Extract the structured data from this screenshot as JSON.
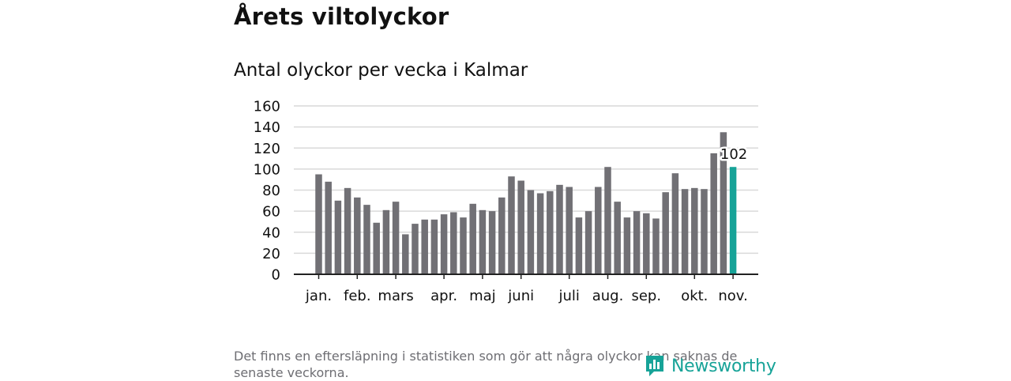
{
  "header": {
    "title": "Årets viltolyckor",
    "subtitle": "Antal olyckor per vecka i Kalmar"
  },
  "footer": {
    "note": "Det finns en eftersläpning i statistiken som gör att några olyckor kan saknas de senaste veckorna.",
    "logo_text": "Newsworthy",
    "logo_icon": "bar-chart-icon"
  },
  "colors": {
    "bar": "#717075",
    "highlight": "#17a398",
    "grid": "#d9d9d9",
    "axis": "#222222"
  },
  "chart_data": {
    "type": "bar",
    "title": "Antal olyckor per vecka i Kalmar",
    "xlabel": "",
    "ylabel": "",
    "ylim": [
      0,
      160
    ],
    "yticks": [
      0,
      20,
      40,
      60,
      80,
      100,
      120,
      140,
      160
    ],
    "grid": true,
    "weeks": [
      1,
      2,
      3,
      4,
      5,
      6,
      7,
      8,
      9,
      10,
      11,
      12,
      13,
      14,
      15,
      16,
      17,
      18,
      19,
      20,
      21,
      22,
      23,
      24,
      25,
      26,
      27,
      28,
      29,
      30,
      31,
      32,
      33,
      34,
      35,
      36,
      37,
      38,
      39,
      40,
      41,
      42,
      43,
      44
    ],
    "values": [
      95,
      88,
      70,
      82,
      73,
      66,
      49,
      61,
      69,
      38,
      48,
      52,
      52,
      57,
      59,
      54,
      67,
      61,
      60,
      73,
      93,
      89,
      80,
      77,
      79,
      85,
      83,
      54,
      60,
      83,
      102,
      69,
      54,
      60,
      58,
      53,
      78,
      96,
      81,
      82,
      81,
      115,
      135,
      102
    ],
    "highlight_index": 43,
    "highlight_label": "102",
    "month_labels": [
      {
        "label": "jan.",
        "week": 1
      },
      {
        "label": "feb.",
        "week": 5
      },
      {
        "label": "mars",
        "week": 9
      },
      {
        "label": "apr.",
        "week": 14
      },
      {
        "label": "maj",
        "week": 18
      },
      {
        "label": "juni",
        "week": 22
      },
      {
        "label": "juli",
        "week": 27
      },
      {
        "label": "aug.",
        "week": 31
      },
      {
        "label": "sep.",
        "week": 35
      },
      {
        "label": "okt.",
        "week": 40
      },
      {
        "label": "nov.",
        "week": 44
      }
    ]
  }
}
